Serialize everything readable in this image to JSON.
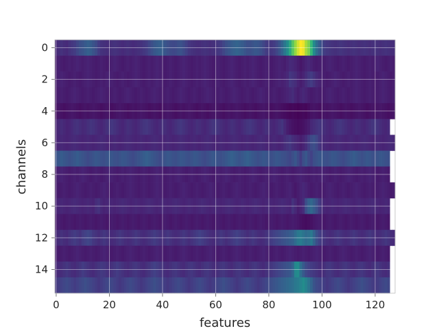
{
  "chart_data": {
    "type": "heatmap",
    "title": "",
    "xlabel": "features",
    "ylabel": "channels",
    "xlim": [
      -0.5,
      127.5
    ],
    "ylim": [
      15.5,
      -0.5
    ],
    "x_ticks": [
      0,
      20,
      40,
      60,
      80,
      100,
      120
    ],
    "y_ticks": [
      0,
      2,
      4,
      6,
      8,
      10,
      12,
      14
    ],
    "grid": true,
    "colormap": "viridis",
    "value_range": [
      0,
      1
    ],
    "n_rows": 16,
    "n_cols": 128,
    "rows": [
      "0.14 0.16 0.18 0.16 0.15 0.18 0.2 0.22 0.26 0.3 0.32 0.35 0.38 0.36 0.32 0.28 0.22 0.18 0.17 0.16 0.16 0.17 0.18 0.17 0.16 0.15 0.16 0.17 0.16 0.15 0.16 0.17 0.18 0.2 0.22 0.26 0.3 0.34 0.36 0.38 0.36 0.33 0.3 0.28 0.27 0.28 0.3 0.31 0.28 0.24 0.2 0.18 0.17 0.16 0.16 0.17 0.18 0.17 0.16 0.17 0.18 0.2 0.22 0.26 0.3 0.33 0.36 0.38 0.4 0.38 0.36 0.33 0.3 0.3 0.32 0.34 0.33 0.3 0.26 0.22 0.2 0.2 0.22 0.26 0.32 0.4 0.5 0.6 0.7 0.8 0.88 0.95 1.0 0.98 0.9 0.85 0.75 0.6 0.45 0.35 0.28 0.22 0.2 0.19 0.18 0.17 0.18 0.19 0.18 0.17 0.16 0.17 0.18 0.17 0.16 0.17 0.18 0.17 0.16 0.17 0.18 0.17 0.16 0.17 0.18 0.17 0.16 0.16",
      "0.1 0.11 0.1 0.09 0.1 0.11 0.1 0.11 0.12 0.11 0.1 0.11 0.12 0.11 0.1 0.09 0.1 0.11 0.1 0.09 0.1 0.11 0.12 0.11 0.1 0.09 0.1 0.11 0.1 0.11 0.12 0.11 0.1 0.09 0.1 0.11 0.1 0.11 0.12 0.11 0.1 0.09 0.1 0.11 0.1 0.09 0.1 0.11 0.12 0.11 0.1 0.09 0.1 0.11 0.1 0.11 0.12 0.11 0.1 0.09 0.1 0.11 0.1 0.09 0.1 0.11 0.12 0.11 0.1 0.09 0.1 0.11 0.1 0.11 0.12 0.11 0.1 0.09 0.1 0.11 0.1 0.09 0.1 0.11 0.12 0.11 0.1 0.12 0.15 0.14 0.12 0.1 0.08 0.1 0.12 0.14 0.12 0.1 0.09 0.1 0.11 0.1 0.11 0.12 0.11 0.1 0.09 0.1 0.11 0.1 0.09 0.1 0.11 0.12 0.11 0.1 0.09 0.1 0.11 0.1 0.11 0.12 0.11 0.1 0.09 0.1 0.11 0.1",
      "0.1 0.11 0.12 0.11 0.1 0.09 0.1 0.11 0.1 0.09 0.1 0.11 0.12 0.11 0.1 0.09 0.1 0.11 0.1 0.11 0.12 0.11 0.1 0.09 0.1 0.11 0.1 0.09 0.1 0.11 0.12 0.11 0.1 0.09 0.1 0.11 0.1 0.11 0.12 0.11 0.1 0.09 0.1 0.11 0.1 0.09 0.1 0.11 0.12 0.11 0.1 0.09 0.1 0.11 0.1 0.11 0.12 0.11 0.1 0.09 0.1 0.11 0.1 0.09 0.1 0.11 0.12 0.11 0.1 0.09 0.1 0.11 0.1 0.11 0.12 0.11 0.1 0.09 0.1 0.11 0.1 0.09 0.1 0.11 0.12 0.11 0.12 0.14 0.2 0.18 0.16 0.12 0.1 0.12 0.16 0.2 0.22 0.18 0.14 0.12 0.11 0.1 0.09 0.1 0.11 0.12 0.11 0.1 0.09 0.1 0.11 0.1 0.11 0.12 0.11 0.1 0.09 0.1 0.11 0.1 0.09 0.1 0.11 0.12 0.11 0.1 0.09 0.1",
      "0.09 0.1 0.11 0.1 0.09 0.1 0.11 0.12 0.11 0.1 0.09 0.1 0.11 0.1 0.09 0.1 0.11 0.12 0.11 0.1 0.09 0.1 0.11 0.1 0.09 0.1 0.11 0.12 0.11 0.1 0.09 0.1 0.11 0.1 0.09 0.1 0.11 0.12 0.11 0.1 0.09 0.1 0.11 0.1 0.09 0.1 0.11 0.12 0.11 0.1 0.09 0.1 0.11 0.1 0.09 0.1 0.11 0.12 0.11 0.1 0.09 0.1 0.11 0.1 0.09 0.1 0.11 0.12 0.11 0.1 0.09 0.1 0.11 0.1 0.09 0.1 0.11 0.12 0.11 0.1 0.09 0.1 0.11 0.1 0.09 0.1 0.11 0.12 0.14 0.16 0.12 0.1 0.12 0.14 0.12 0.1 0.09 0.1 0.11 0.1 0.09 0.1 0.11 0.12 0.11 0.1 0.09 0.1 0.11 0.1 0.09 0.1 0.11 0.12 0.11 0.1 0.09 0.1 0.11 0.1 0.09 0.1 0.11 0.12 0.11 0.1 0.09 0.1",
      "0.06 0.07 0.06 0.05 0.06 0.07 0.08 0.07 0.06 0.05 0.06 0.07 0.06 0.07 0.08 0.07 0.06 0.05 0.06 0.07 0.06 0.05 0.06 0.07 0.08 0.07 0.06 0.05 0.06 0.07 0.06 0.07 0.08 0.07 0.06 0.05 0.06 0.07 0.06 0.05 0.06 0.07 0.08 0.07 0.06 0.05 0.06 0.07 0.06 0.07 0.08 0.07 0.06 0.05 0.06 0.07 0.06 0.05 0.06 0.07 0.08 0.07 0.06 0.05 0.06 0.07 0.06 0.07 0.08 0.07 0.06 0.05 0.06 0.07 0.06 0.05 0.06 0.07 0.08 0.07 0.06 0.05 0.06 0.07 0.06 0.05 0.04 0.03 0.02 0.03 0.02 0.01 0.02 0.03 0.02 0.04 0.06 0.07 0.06 0.05 0.06 0.07 0.06 0.07 0.08 0.07 0.06 0.05 0.06 0.07 0.06 0.05 0.06 0.07 0.08 0.07 0.06 0.05 0.06 0.07 0.06 0.07 0.08 0.07 0.06 0.05 0.06 0.07",
      "0.12 0.14 0.16 0.14 0.12 0.13 0.15 0.17 0.18 0.16 0.14 0.15 0.17 0.19 0.18 0.16 0.14 0.13 0.15 0.17 0.19 0.2 0.18 0.16 0.14 0.13 0.15 0.17 0.16 0.14 0.13 0.15 0.17 0.19 0.2 0.18 0.16 0.14 0.13 0.15 0.17 0.16 0.14 0.13 0.15 0.17 0.19 0.2 0.18 0.16 0.14 0.13 0.15 0.17 0.16 0.14 0.13 0.15 0.17 0.19 0.2 0.18 0.16 0.14 0.13 0.15 0.17 0.16 0.14 0.13 0.15 0.17 0.19 0.2 0.18 0.16 0.14 0.13 0.15 0.17 0.16 0.14 0.13 0.15 0.17 0.19 0.14 0.1 0.08 0.06 0.05 0.04 0.05 0.06 0.08 0.1 0.14 0.16 0.18 0.2 0.18 0.16 0.14 0.13 0.15 0.17 0.19 0.2 0.18 0.16 0.14 0.13 0.15 0.17 0.16 0.14 0.13 0.15 0.17 0.19 0.2 0.18 0.16 0.14 0.13 0.15",
      "0.12 0.13 0.14 0.13 0.12 0.13 0.14 0.15 0.14 0.13 0.12 0.13 0.14 0.13 0.12 0.13 0.14 0.15 0.14 0.13 0.12 0.13 0.14 0.13 0.12 0.13 0.14 0.15 0.14 0.13 0.12 0.13 0.14 0.13 0.12 0.13 0.14 0.15 0.14 0.13 0.12 0.13 0.14 0.13 0.12 0.13 0.14 0.15 0.14 0.13 0.12 0.13 0.14 0.13 0.12 0.13 0.14 0.15 0.14 0.13 0.12 0.13 0.14 0.13 0.12 0.13 0.14 0.15 0.14 0.13 0.12 0.13 0.14 0.13 0.12 0.13 0.14 0.15 0.14 0.13 0.12 0.13 0.14 0.13 0.12 0.13 0.16 0.18 0.2 0.16 0.14 0.12 0.1 0.12 0.16 0.22 0.28 0.3 0.26 0.2 0.15 0.14 0.13 0.12 0.13 0.14 0.15 0.14 0.13 0.12 0.13 0.14 0.13 0.12 0.13 0.14 0.15 0.14 0.13 0.12 0.13 0.14 0.13 0.12 0.13 0.14 0.15 0.14",
      "0.32 0.34 0.36 0.34 0.32 0.3 0.32 0.34 0.36 0.34 0.32 0.3 0.28 0.3 0.32 0.34 0.33 0.31 0.3 0.32 0.34 0.33 0.31 0.3 0.32 0.34 0.33 0.31 0.29 0.28 0.3 0.32 0.34 0.36 0.38 0.36 0.34 0.32 0.3 0.28 0.3 0.32 0.34 0.33 0.31 0.3 0.32 0.34 0.33 0.31 0.3 0.32 0.34 0.33 0.31 0.29 0.28 0.3 0.32 0.34 0.33 0.31 0.3 0.32 0.34 0.36 0.38 0.36 0.34 0.32 0.34 0.36 0.38 0.36 0.34 0.32 0.3 0.32 0.34 0.33 0.31 0.3 0.32 0.34 0.33 0.31 0.3 0.28 0.26 0.3 0.34 0.28 0.22 0.3 0.34 0.28 0.24 0.3 0.32 0.34 0.33 0.31 0.3 0.32 0.34 0.33 0.31 0.29 0.28 0.3 0.32 0.34 0.36 0.34 0.32 0.3 0.32 0.34 0.33 0.31 0.3 0.32 0.34 0.33 0.31 0.3",
      "0.1 0.11 0.12 0.11 0.1 0.09 0.1 0.11 0.1 0.11 0.12 0.11 0.1 0.09 0.1 0.11 0.1 0.09 0.1 0.11 0.12 0.11 0.1 0.09 0.1 0.11 0.1 0.11 0.12 0.11 0.1 0.09 0.1 0.11 0.1 0.09 0.1 0.11 0.12 0.11 0.1 0.09 0.1 0.11 0.1 0.11 0.12 0.11 0.1 0.09 0.1 0.11 0.1 0.09 0.1 0.11 0.12 0.11 0.1 0.09 0.1 0.11 0.1 0.11 0.12 0.11 0.1 0.09 0.1 0.11 0.1 0.09 0.1 0.11 0.12 0.11 0.1 0.09 0.1 0.11 0.1 0.11 0.12 0.11 0.1 0.09 0.1 0.11 0.1 0.09 0.1 0.11 0.12 0.11 0.1 0.09 0.1 0.11 0.1 0.11 0.12 0.11 0.1 0.09 0.1 0.11 0.1 0.09 0.1 0.11 0.12 0.11 0.1 0.09 0.1 0.11 0.1 0.11 0.12 0.11 0.1 0.09 0.1 0.11 0.1 0.09",
      "0.1 0.09 0.1 0.11 0.1 0.09 0.1 0.11 0.12 0.11 0.1 0.09 0.1 0.11 0.1 0.09 0.1 0.11 0.12 0.11 0.1 0.09 0.1 0.11 0.1 0.09 0.1 0.11 0.12 0.11 0.1 0.09 0.1 0.11 0.1 0.09 0.1 0.11 0.12 0.11 0.1 0.09 0.1 0.11 0.1 0.09 0.1 0.11 0.12 0.11 0.1 0.09 0.1 0.11 0.1 0.09 0.1 0.11 0.12 0.11 0.1 0.09 0.1 0.11 0.1 0.09 0.1 0.11 0.12 0.11 0.1 0.09 0.1 0.11 0.1 0.09 0.1 0.11 0.12 0.11 0.1 0.09 0.1 0.11 0.1 0.09 0.1 0.11 0.12 0.1 0.08 0.1 0.12 0.14 0.12 0.1 0.09 0.1 0.11 0.1 0.09 0.1 0.11 0.12 0.11 0.1 0.09 0.1 0.11 0.1 0.09 0.1 0.11 0.12 0.11 0.1 0.09 0.1 0.11 0.1 0.09 0.1 0.11 0.12 0.11 0.1 0.09 0.1",
      "0.12 0.13 0.14 0.13 0.12 0.13 0.14 0.15 0.14 0.13 0.12 0.13 0.14 0.13 0.12 0.16 0.18 0.14 0.12 0.13 0.14 0.13 0.12 0.13 0.14 0.15 0.14 0.13 0.12 0.13 0.14 0.13 0.12 0.13 0.14 0.15 0.14 0.13 0.12 0.13 0.14 0.13 0.12 0.13 0.14 0.15 0.14 0.13 0.12 0.13 0.14 0.13 0.12 0.13 0.14 0.15 0.14 0.13 0.12 0.13 0.14 0.13 0.12 0.13 0.14 0.15 0.14 0.13 0.12 0.13 0.14 0.13 0.12 0.13 0.14 0.15 0.14 0.13 0.12 0.13 0.14 0.13 0.12 0.13 0.14 0.15 0.14 0.13 0.12 0.18 0.14 0.1 0.12 0.16 0.3 0.38 0.42 0.36 0.3 0.22 0.16 0.13 0.12 0.13 0.14 0.13 0.12 0.13 0.14 0.15 0.14 0.13 0.12 0.13 0.14 0.13 0.12 0.13 0.14 0.15 0.14 0.13 0.12 0.13 0.14 0.13",
      "0.09 0.1 0.09 0.08 0.09 0.1 0.09 0.08 0.09 0.1 0.09 0.08 0.09 0.1 0.09 0.08 0.09 0.1 0.09 0.08 0.09 0.1 0.09 0.08 0.09 0.1 0.09 0.08 0.09 0.1 0.09 0.08 0.09 0.1 0.09 0.08 0.09 0.1 0.09 0.08 0.09 0.1 0.09 0.08 0.09 0.1 0.09 0.08 0.09 0.1 0.09 0.08 0.09 0.1 0.09 0.08 0.09 0.1 0.09 0.08 0.09 0.1 0.09 0.08 0.09 0.1 0.09 0.08 0.09 0.1 0.09 0.08 0.09 0.1 0.09 0.08 0.09 0.1 0.09 0.08 0.09 0.1 0.09 0.08 0.09 0.1 0.09 0.08 0.09 0.1 0.09 0.08 0.06 0.05 0.04 0.05 0.06 0.08 0.09 0.1 0.09 0.08 0.09 0.1 0.09 0.08 0.09 0.1 0.09 0.08 0.09 0.1 0.09 0.08 0.09 0.1 0.09 0.08 0.09 0.1 0.09 0.08 0.09 0.1 0.09 0.08",
      "0.14 0.16 0.18 0.16 0.15 0.18 0.2 0.22 0.2 0.18 0.22 0.24 0.26 0.24 0.2 0.18 0.16 0.18 0.2 0.18 0.16 0.15 0.16 0.18 0.2 0.18 0.16 0.15 0.16 0.18 0.2 0.18 0.16 0.15 0.16 0.18 0.2 0.22 0.2 0.18 0.16 0.18 0.2 0.18 0.16 0.15 0.16 0.18 0.2 0.18 0.16 0.18 0.2 0.22 0.24 0.22 0.2 0.18 0.16 0.15 0.16 0.18 0.2 0.18 0.16 0.18 0.2 0.22 0.24 0.22 0.2 0.18 0.16 0.18 0.2 0.18 0.16 0.15 0.16 0.18 0.2 0.22 0.24 0.26 0.28 0.3 0.32 0.34 0.36 0.38 0.44 0.5 0.52 0.48 0.44 0.46 0.5 0.4 0.3 0.24 0.2 0.18 0.16 0.15 0.16 0.18 0.2 0.18 0.16 0.15 0.16 0.18 0.2 0.18 0.16 0.15 0.16 0.18 0.2 0.18 0.16 0.15 0.16 0.18 0.2 0.18 0.16 0.15",
      "0.1 0.09 0.1 0.11 0.1 0.09 0.1 0.11 0.12 0.11 0.1 0.09 0.1 0.11 0.1 0.09 0.1 0.11 0.12 0.11 0.1 0.09 0.1 0.11 0.1 0.09 0.1 0.11 0.12 0.11 0.1 0.09 0.1 0.11 0.1 0.09 0.1 0.11 0.12 0.11 0.1 0.09 0.1 0.11 0.1 0.09 0.1 0.11 0.12 0.11 0.1 0.09 0.1 0.11 0.1 0.09 0.1 0.11 0.12 0.11 0.1 0.09 0.1 0.11 0.1 0.09 0.1 0.11 0.12 0.11 0.1 0.09 0.1 0.11 0.1 0.09 0.1 0.11 0.12 0.11 0.1 0.09 0.1 0.11 0.1 0.09 0.1 0.11 0.12 0.11 0.1 0.09 0.1 0.11 0.1 0.09 0.1 0.11 0.12 0.11 0.1 0.09 0.1 0.11 0.1 0.09 0.1 0.11 0.12 0.11 0.1 0.09 0.1 0.11 0.1 0.09 0.1 0.11 0.12 0.11 0.1 0.09 0.1 0.11 0.1 0.09",
      "0.14 0.15 0.16 0.18 0.2 0.18 0.16 0.15 0.17 0.19 0.22 0.2 0.18 0.16 0.15 0.17 0.19 0.21 0.2 0.18 0.16 0.18 0.2 0.22 0.2 0.18 0.16 0.15 0.17 0.19 0.2 0.18 0.16 0.15 0.17 0.19 0.22 0.24 0.22 0.2 0.18 0.16 0.15 0.17 0.19 0.2 0.18 0.16 0.15 0.17 0.19 0.2 0.18 0.16 0.15 0.17 0.19 0.2 0.18 0.16 0.15 0.17 0.19 0.2 0.18 0.16 0.15 0.17 0.19 0.2 0.18 0.16 0.15 0.17 0.19 0.2 0.18 0.16 0.15 0.17 0.19 0.2 0.22 0.24 0.26 0.28 0.3 0.32 0.34 0.4 0.58 0.6 0.45 0.35 0.28 0.24 0.22 0.2 0.18 0.16 0.15 0.17 0.19 0.2 0.18 0.16 0.15 0.17 0.19 0.2 0.18 0.16 0.15 0.17 0.19 0.2 0.18 0.16 0.15 0.17 0.19 0.2 0.18 0.16 0.15 0.17",
      "0.2 0.22 0.24 0.26 0.28 0.26 0.24 0.22 0.24 0.26 0.28 0.3 0.28 0.26 0.24 0.22 0.2 0.22 0.24 0.26 0.28 0.26 0.24 0.22 0.2 0.22 0.24 0.26 0.28 0.26 0.24 0.22 0.2 0.22 0.24 0.26 0.28 0.3 0.28 0.26 0.24 0.22 0.2 0.22 0.24 0.26 0.28 0.26 0.24 0.22 0.2 0.22 0.24 0.26 0.28 0.26 0.24 0.22 0.2 0.22 0.24 0.26 0.28 0.3 0.28 0.26 0.24 0.22 0.2 0.22 0.24 0.26 0.28 0.26 0.24 0.22 0.2 0.22 0.24 0.26 0.28 0.3 0.32 0.34 0.36 0.38 0.4 0.42 0.44 0.46 0.5 0.52 0.56 0.6 0.55 0.48 0.4 0.32 0.28 0.26 0.24 0.22 0.2 0.22 0.24 0.26 0.28 0.26 0.24 0.22 0.2 0.22 0.24 0.26 0.28 0.3 0.28 0.26 0.24 0.22 0.2 0.22 0.24 0.26 0.28 0.26"
    ]
  }
}
